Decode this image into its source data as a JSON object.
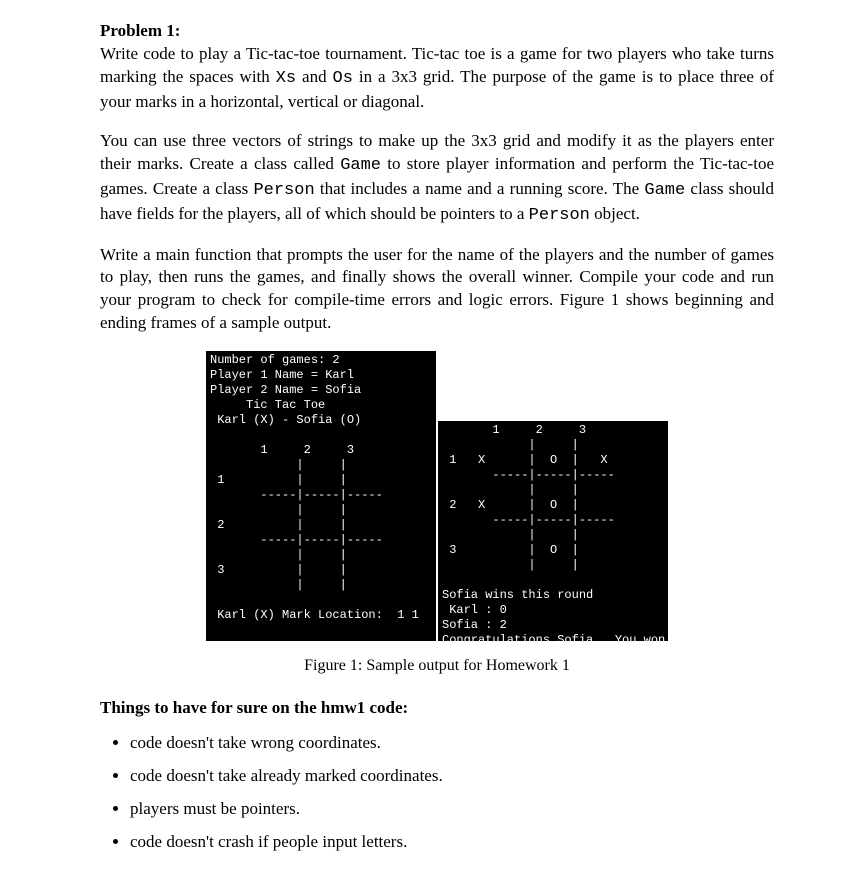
{
  "title": "Problem 1:",
  "para1_a": "Write code to play a Tic-tac-toe tournament. Tic-tac toe is a game for two players who take turns marking the spaces with ",
  "para1_b": "Xs",
  "para1_c": " and ",
  "para1_d": "Os",
  "para1_e": " in a 3x3 grid. The purpose of the game is to place three of your marks in a horizontal, vertical or diagonal.",
  "para2_a": "You can use three vectors of strings to make up the 3x3 grid and modify it as the players enter their marks. Create a class called ",
  "para2_b": "Game",
  "para2_c": " to store player information and perform the Tic-tac-toe games. Create a class ",
  "para2_d": "Person",
  "para2_e": " that includes a name and a running score. The ",
  "para2_f": "Game",
  "para2_g": " class should have fields for the players, all of which should be pointers to a ",
  "para2_h": "Person",
  "para2_i": " object.",
  "para3": "Write a main function that prompts the user for the name of the players and the number of games to play, then runs the games, and finally shows the overall winner. Compile your code and run your program to check for compile-time errors and logic errors. Figure 1 shows beginning and ending frames of a sample output.",
  "terminal_left": "Number of games: 2\nPlayer 1 Name = Karl\nPlayer 2 Name = Sofia\n     Tic Tac Toe\n Karl (X) - Sofia (O)\n\n       1     2     3\n            |     |\n 1          |     |\n       -----|-----|-----\n            |     |\n 2          |     |\n       -----|-----|-----\n            |     |\n 3          |     |\n            |     |\n\n Karl (X) Mark Location:  1 1",
  "terminal_right": "       1     2     3\n            |     |\n 1   X      |  O  |   X\n       -----|-----|-----\n            |     |\n 2   X      |  O  |\n       -----|-----|-----\n            |     |\n 3          |  O  |\n            |     |\n\nSofia wins this round\n Karl : 0\nSofia : 2\nCongratulations Sofia . You won!",
  "caption": "Figure 1: Sample output for Homework 1",
  "section_head": "Things to have for sure on the hmw1 code:",
  "bullets": {
    "0": "code doesn't take wrong coordinates.",
    "1": "code doesn't take already marked coordinates.",
    "2": "players must be pointers.",
    "3": "code doesn't crash if people input letters."
  },
  "colors": {
    "page_bg": "#ffffff",
    "text": "#000000",
    "term_bg": "#000000",
    "term_fg": "#ffffff"
  }
}
